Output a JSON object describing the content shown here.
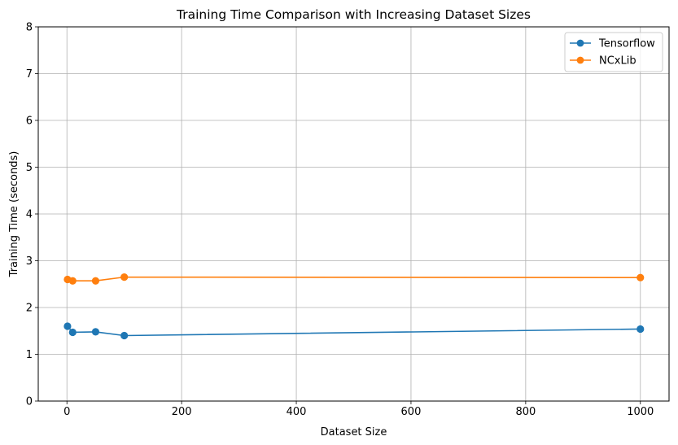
{
  "chart_data": {
    "type": "line",
    "title": "Training Time Comparison with Increasing Dataset Sizes",
    "xlabel": "Dataset Size",
    "ylabel": "Training Time (seconds)",
    "xlim": [
      -50,
      1050
    ],
    "ylim": [
      0,
      8
    ],
    "xticks": [
      0,
      200,
      400,
      600,
      800,
      1000
    ],
    "yticks": [
      0,
      1,
      2,
      3,
      4,
      5,
      6,
      7,
      8
    ],
    "grid": true,
    "legend_position": "top-right",
    "series": [
      {
        "name": "Tensorflow",
        "color": "#1f77b4",
        "marker": "circle",
        "x": [
          1,
          10,
          50,
          100,
          1000
        ],
        "y": [
          1.6,
          1.47,
          1.48,
          1.4,
          1.54
        ]
      },
      {
        "name": "NCxLib",
        "color": "#ff7f0e",
        "marker": "circle",
        "x": [
          1,
          10,
          50,
          100,
          1000
        ],
        "y": [
          2.6,
          2.57,
          2.57,
          2.65,
          2.64
        ]
      }
    ]
  }
}
